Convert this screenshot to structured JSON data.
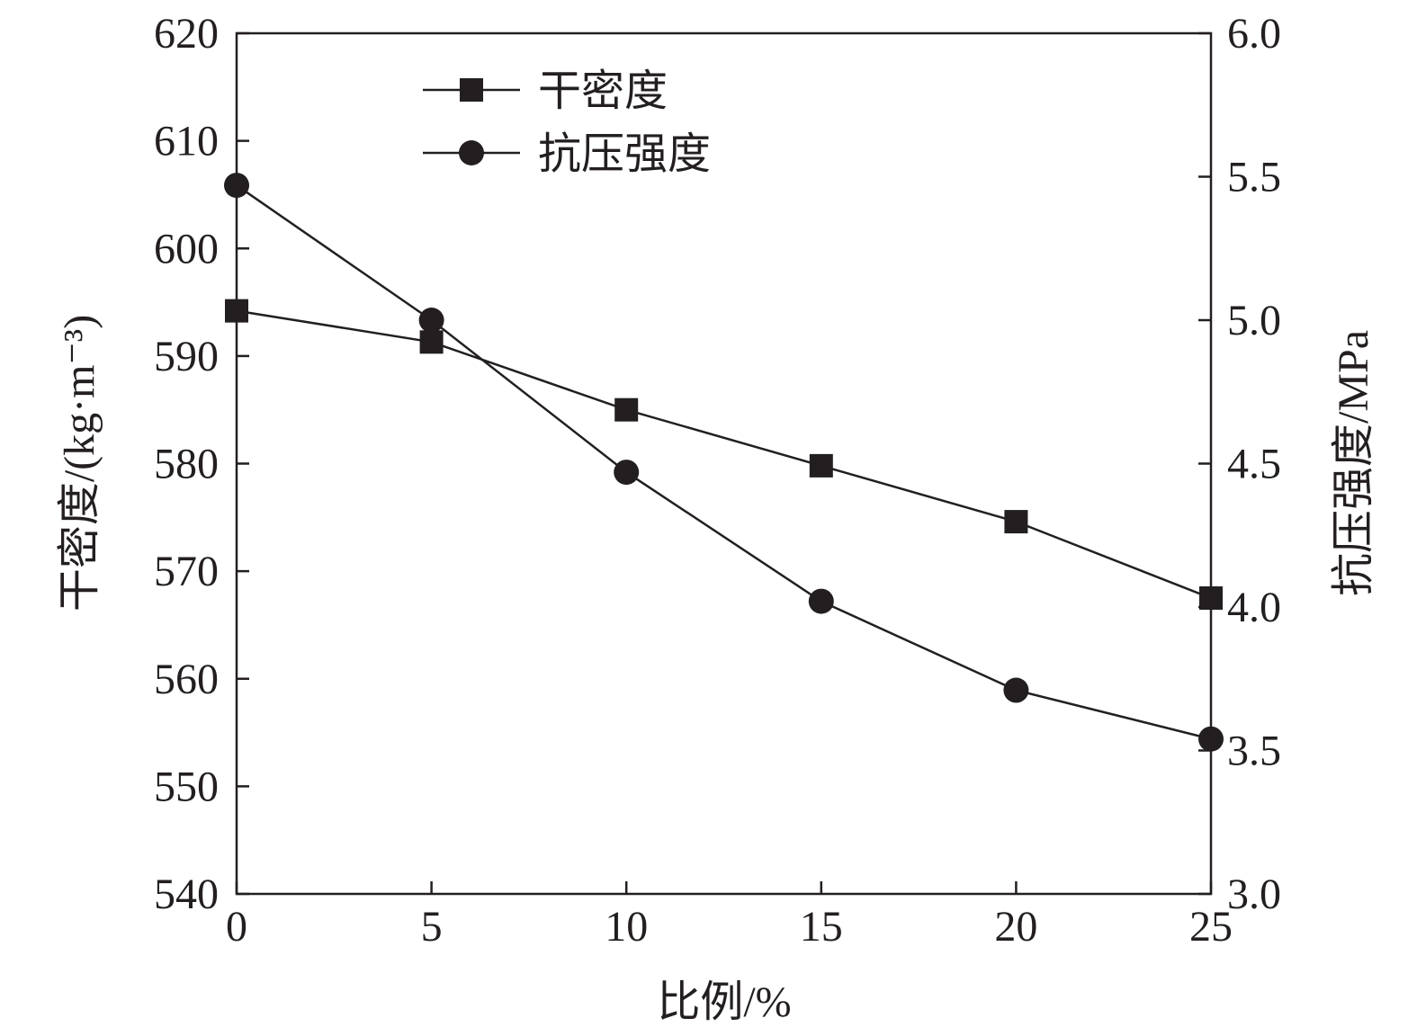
{
  "chart_data": {
    "type": "line",
    "xlabel": "比例/%",
    "ylabel_left": "干密度/(kg·m⁻³)",
    "ylabel_right": "抗压强度/MPa",
    "x": [
      0,
      5,
      10,
      15,
      20,
      25
    ],
    "x_ticks": [
      "0",
      "5",
      "10",
      "15",
      "20",
      "25"
    ],
    "xlim": [
      0,
      25
    ],
    "ylim_left": [
      540,
      620
    ],
    "ylim_right": [
      3.0,
      6.0
    ],
    "y_ticks_left": [
      "540",
      "550",
      "560",
      "570",
      "580",
      "590",
      "600",
      "610",
      "620"
    ],
    "y_ticks_right": [
      "3.0",
      "3.5",
      "4.0",
      "4.5",
      "5.0",
      "5.5",
      "6.0"
    ],
    "legend_position": "top-left",
    "grid": false,
    "series": [
      {
        "name": "干密度",
        "axis": "left",
        "marker": "square",
        "values": [
          594.2,
          591.3,
          585.0,
          579.8,
          574.6,
          567.5
        ]
      },
      {
        "name": "抗压强度",
        "axis": "right",
        "marker": "circle",
        "values": [
          5.47,
          5.0,
          4.47,
          4.02,
          3.71,
          3.54
        ]
      }
    ]
  }
}
